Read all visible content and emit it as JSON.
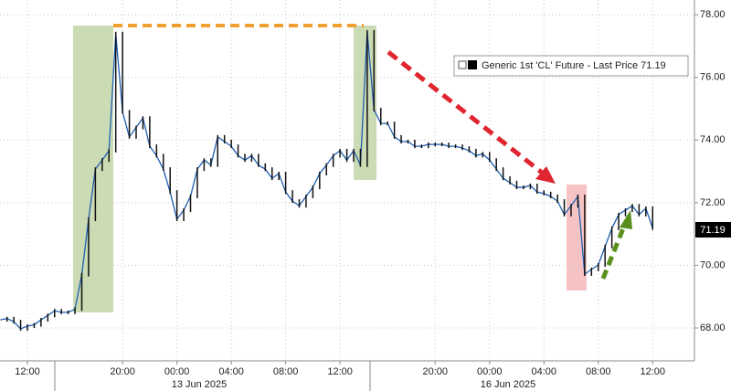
{
  "chart_data": {
    "type": "line",
    "categories": [
      null,
      null,
      null,
      null,
      "12:00",
      null,
      null,
      null,
      null,
      null,
      null,
      null,
      null,
      null,
      null,
      null,
      null,
      null,
      "20:00",
      null,
      null,
      null,
      null,
      null,
      null,
      null,
      "00:00",
      null,
      null,
      null,
      null,
      null,
      null,
      null,
      "04:00",
      null,
      null,
      null,
      null,
      null,
      null,
      null,
      "08:00",
      null,
      null,
      null,
      null,
      null,
      null,
      null,
      "12:00",
      null,
      null,
      null,
      null,
      null,
      null,
      null,
      null,
      null,
      null,
      null,
      null,
      null,
      "20:00",
      null,
      null,
      null,
      null,
      null,
      null,
      null,
      "00:00",
      null,
      null,
      null,
      null,
      null,
      null,
      null,
      "04:00",
      null,
      null,
      null,
      null,
      null,
      null,
      null,
      "08:00",
      null,
      null,
      null,
      null,
      null,
      null,
      null,
      "12:00"
    ],
    "date_labels": [
      "13 Jun 2025",
      "16 Jun 2025"
    ],
    "series": [
      {
        "name": "Generic 1st 'CL' Future - Last Price 71.19",
        "color": "#1f5fb0",
        "values": [
          68.26,
          68.3,
          68.2,
          67.97,
          68.06,
          68.1,
          68.26,
          68.4,
          68.55,
          68.5,
          68.5,
          68.6,
          69.7,
          71.47,
          73.07,
          73.36,
          73.66,
          77.4,
          74.9,
          74.1,
          74.4,
          74.7,
          73.8,
          73.5,
          73.07,
          72.34,
          71.47,
          71.76,
          72.2,
          73.07,
          73.36,
          73.2,
          74.1,
          73.95,
          73.8,
          73.5,
          73.36,
          73.5,
          73.2,
          73.07,
          72.78,
          72.93,
          72.34,
          72.05,
          71.9,
          72.2,
          72.49,
          72.93,
          73.2,
          73.5,
          73.66,
          73.36,
          73.66,
          73.2,
          77.45,
          74.97,
          74.53,
          74.53,
          74.1,
          73.95,
          73.95,
          73.8,
          73.8,
          73.86,
          73.86,
          73.86,
          73.8,
          73.8,
          73.74,
          73.66,
          73.5,
          73.56,
          73.36,
          73.07,
          72.78,
          72.64,
          72.49,
          72.49,
          72.55,
          72.34,
          72.29,
          72.2,
          72.05,
          71.62,
          71.9,
          72.2,
          69.72,
          69.87,
          70.01,
          70.6,
          71.18,
          71.62,
          71.76,
          71.9,
          71.62,
          71.82,
          71.19
        ]
      }
    ],
    "last_price_label": "71.19",
    "ylim": [
      66.95,
      78.47
    ],
    "yticks": [
      {
        "value": 68,
        "label": "68.00"
      },
      {
        "value": 70,
        "label": "70.00"
      },
      {
        "value": 72,
        "label": "72.00"
      },
      {
        "value": 74,
        "label": "74.00"
      },
      {
        "value": 76,
        "label": "76.00"
      },
      {
        "value": 78,
        "label": "78.00"
      }
    ],
    "grid": true
  }
}
